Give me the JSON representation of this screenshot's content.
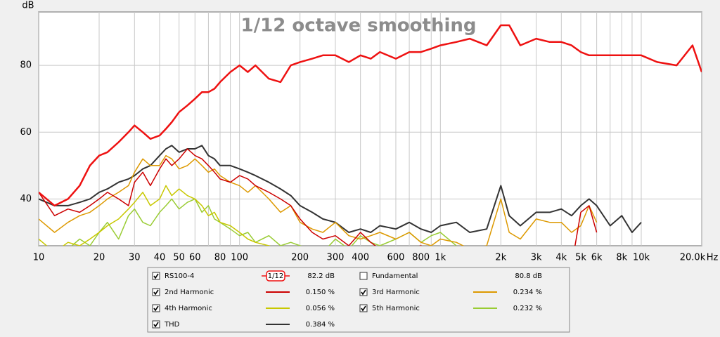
{
  "chart_data": {
    "type": "line",
    "title": "1/12 octave smoothing",
    "smoothing": "1/12",
    "y_label": "dB",
    "x_label": "Hz",
    "log_x": true,
    "grid": true,
    "xlim": [
      10,
      20000
    ],
    "ylim": [
      26,
      96
    ],
    "yticks": [
      40,
      60,
      80
    ],
    "xticks": [
      10,
      20,
      30,
      40,
      50,
      60,
      80,
      100,
      200,
      300,
      400,
      600,
      800,
      {
        "value": 1000,
        "label": "1k"
      },
      {
        "value": 2000,
        "label": "2k"
      },
      {
        "value": 3000,
        "label": "3k"
      },
      {
        "value": 4000,
        "label": "4k"
      },
      {
        "value": 5000,
        "label": "5k"
      },
      {
        "value": 6000,
        "label": "6k"
      },
      {
        "value": 8000,
        "label": "8k"
      },
      {
        "value": 10000,
        "label": "10k"
      },
      {
        "value": 20000,
        "label": "20.0k"
      }
    ],
    "x_minor_ticks": [
      70,
      90,
      500,
      700,
      900,
      7000,
      9000
    ],
    "x": [
      10,
      12,
      14,
      16,
      18,
      20,
      22,
      25,
      28,
      30,
      33,
      36,
      40,
      43,
      46,
      50,
      55,
      60,
      65,
      70,
      75,
      80,
      90,
      100,
      110,
      120,
      140,
      160,
      180,
      200,
      230,
      260,
      300,
      350,
      400,
      450,
      500,
      600,
      700,
      800,
      900,
      1000,
      1200,
      1400,
      1700,
      2000,
      2200,
      2500,
      3000,
      3500,
      4000,
      4500,
      5000,
      5500,
      6000,
      7000,
      8000,
      9000,
      10000,
      12000,
      15000,
      18000,
      20000
    ],
    "series": [
      {
        "name": "RS100-4",
        "color": "#ee1111",
        "width": 2.5,
        "checked": true,
        "readout": "82.2 dB",
        "values": [
          42,
          38,
          40,
          44,
          50,
          53,
          54,
          57,
          60,
          62,
          60,
          58,
          59,
          61,
          63,
          66,
          68,
          70,
          72,
          72,
          73,
          75,
          78,
          80,
          78,
          80,
          76,
          75,
          80,
          81,
          82,
          83,
          83,
          81,
          83,
          82,
          84,
          82,
          84,
          84,
          85,
          86,
          87,
          88,
          86,
          92,
          92,
          86,
          88,
          87,
          87,
          86,
          84,
          83,
          83,
          83,
          83,
          83,
          83,
          81,
          80,
          86,
          78
        ]
      },
      {
        "name": "Fundamental",
        "color": "#aa2222",
        "checked": false,
        "readout": "80.8 dB"
      },
      {
        "name": "2nd Harmonic",
        "color": "#cc0000",
        "width": 1.5,
        "checked": true,
        "readout": "0.150 %",
        "values": [
          42,
          35,
          37,
          36,
          38,
          40,
          42,
          40,
          38,
          45,
          48,
          44,
          49,
          52,
          50,
          52,
          55,
          53,
          52,
          50,
          48,
          46,
          45,
          47,
          46,
          44,
          42,
          40,
          38,
          34,
          30,
          28,
          29,
          26,
          30,
          27,
          25,
          24,
          25,
          26,
          24,
          22,
          24,
          22,
          23,
          25,
          24,
          23,
          22,
          25,
          23,
          20,
          36,
          38,
          30,
          null,
          null,
          null,
          null,
          null,
          null,
          null,
          null
        ]
      },
      {
        "name": "3rd Harmonic",
        "color": "#dd9900",
        "width": 1.5,
        "checked": true,
        "readout": "0.234 %",
        "values": [
          34,
          30,
          33,
          35,
          36,
          38,
          40,
          42,
          44,
          48,
          52,
          50,
          50,
          53,
          52,
          49,
          50,
          52,
          50,
          48,
          49,
          47,
          45,
          44,
          42,
          44,
          40,
          36,
          38,
          33,
          31,
          30,
          33,
          29,
          28,
          29,
          30,
          28,
          30,
          27,
          26,
          28,
          27,
          25,
          26,
          40,
          30,
          28,
          34,
          33,
          33,
          30,
          32,
          38,
          33,
          null,
          null,
          null,
          null,
          null,
          null,
          null,
          null
        ]
      },
      {
        "name": "4th Harmonic",
        "color": "#c8c800",
        "width": 1.5,
        "checked": true,
        "readout": "0.056 %",
        "values": [
          28,
          24,
          27,
          26,
          28,
          30,
          32,
          34,
          37,
          39,
          42,
          38,
          40,
          44,
          41,
          43,
          41,
          40,
          38,
          35,
          36,
          33,
          32,
          30,
          28,
          27,
          26,
          25,
          24,
          22,
          null,
          null,
          null,
          null,
          null,
          null,
          null,
          null,
          null,
          null,
          null,
          null,
          null,
          null,
          null,
          null,
          null,
          null,
          null,
          null,
          null,
          null,
          null,
          null,
          null,
          null,
          null,
          null,
          null,
          null,
          null,
          null,
          null
        ]
      },
      {
        "name": "5th Harmonic",
        "color": "#99cc33",
        "width": 1.5,
        "checked": true,
        "readout": "0.232 %",
        "values": [
          26,
          22,
          25,
          28,
          26,
          30,
          33,
          28,
          35,
          37,
          33,
          32,
          36,
          38,
          40,
          37,
          39,
          40,
          36,
          38,
          34,
          33,
          31,
          29,
          30,
          27,
          29,
          26,
          27,
          26,
          25,
          24,
          28,
          25,
          29,
          27,
          26,
          28,
          30,
          27,
          29,
          30,
          26,
          null,
          null,
          null,
          null,
          null,
          null,
          null,
          null,
          null,
          null,
          null,
          null,
          null,
          null,
          null,
          null,
          null,
          null,
          null,
          null
        ]
      },
      {
        "name": "THD",
        "color": "#333333",
        "width": 2,
        "checked": true,
        "readout": "0.384 %",
        "values": [
          40,
          38,
          38,
          39,
          40,
          42,
          43,
          45,
          46,
          47,
          49,
          50,
          53,
          55,
          56,
          54,
          55,
          55,
          56,
          53,
          52,
          50,
          50,
          49,
          48,
          47,
          45,
          43,
          41,
          38,
          36,
          34,
          33,
          30,
          31,
          30,
          32,
          31,
          33,
          31,
          30,
          32,
          33,
          30,
          31,
          44,
          35,
          32,
          36,
          36,
          37,
          35,
          38,
          40,
          38,
          32,
          35,
          30,
          33,
          null,
          null,
          null,
          null
        ]
      }
    ]
  }
}
